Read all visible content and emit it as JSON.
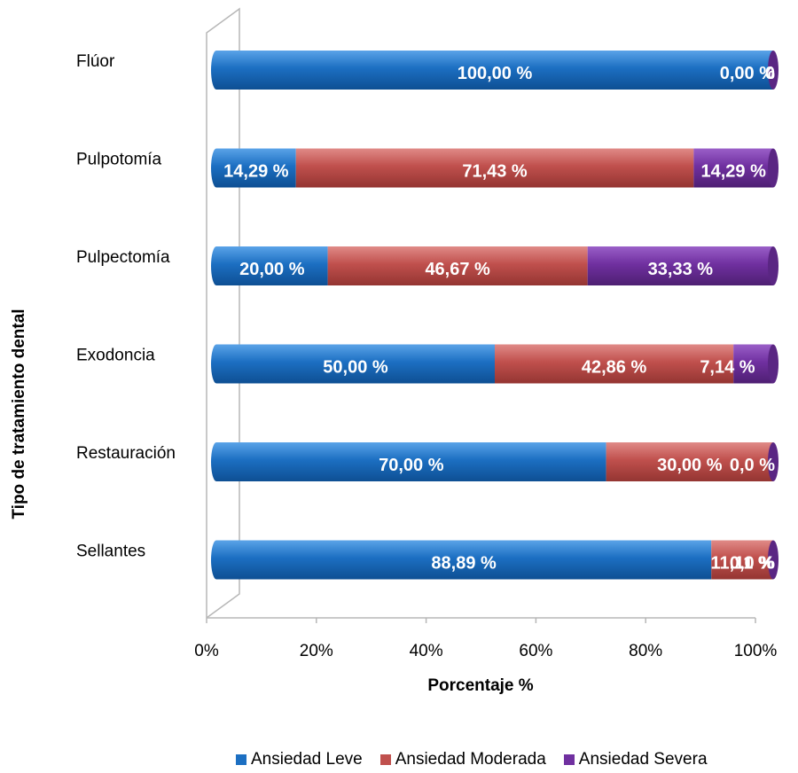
{
  "chart_data": {
    "type": "bar",
    "orientation": "horizontal",
    "stacked": "percent",
    "categories": [
      "Flúor",
      "Pulpotomía",
      "Pulpectomía",
      "Exodoncia",
      "Restauración",
      "Sellantes"
    ],
    "series": [
      {
        "name": "Ansiedad Leve",
        "color": "#1c6fc2",
        "values": [
          100.0,
          14.29,
          20.0,
          50.0,
          70.0,
          88.89
        ],
        "labels": [
          "100,00 %",
          "14,29 %",
          "20,00 %",
          "50,00 %",
          "70,00 %",
          "88,89 %"
        ]
      },
      {
        "name": "Ansiedad Moderada",
        "color": "#c0504d",
        "values": [
          0.0,
          71.43,
          46.67,
          42.86,
          30.0,
          11.11
        ],
        "labels": [
          "0,00 %",
          "71,43 %",
          "46,67 %",
          "42,86 %",
          "30,00 %",
          "11,11 %"
        ]
      },
      {
        "name": "Ansiedad Severa",
        "color": "#7030a0",
        "values": [
          0.0,
          14.29,
          33.33,
          7.14,
          0.0,
          0.0
        ],
        "labels": [
          "0",
          "14,29 %",
          "33,33 %",
          "7,14 %",
          "0,0 %",
          "0,0 %"
        ]
      }
    ],
    "xlabel": "Porcentaje %",
    "ylabel": "Tipo de tratamiento dental",
    "xticks": [
      "0%",
      "20%",
      "40%",
      "60%",
      "80%",
      "100%"
    ],
    "xlim": [
      0,
      100
    ],
    "grid": false,
    "legend_position": "bottom"
  }
}
